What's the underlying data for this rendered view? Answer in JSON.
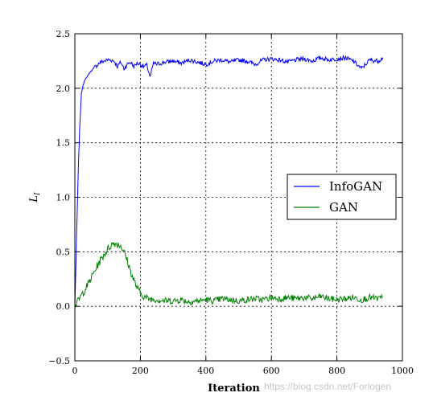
{
  "chart_data": {
    "type": "line",
    "title": "",
    "xlabel": "Iteration",
    "ylabel": "L_I",
    "ylabel_main": "L",
    "ylabel_sub": "I",
    "xlim": [
      0,
      1000
    ],
    "ylim": [
      -0.5,
      2.5
    ],
    "xticks": [
      0,
      200,
      400,
      600,
      800,
      1000
    ],
    "yticks": [
      -0.5,
      0.0,
      0.5,
      1.0,
      1.5,
      2.0,
      2.5
    ],
    "xtick_labels": [
      "0",
      "200",
      "400",
      "600",
      "800",
      "1000"
    ],
    "ytick_labels": [
      "−0.5",
      "0.0",
      "0.5",
      "1.0",
      "1.5",
      "2.0",
      "2.5"
    ],
    "grid": true,
    "grid_style": "dotted",
    "legend_position": "center-right",
    "series": [
      {
        "name": "InfoGAN",
        "color": "#0000ff",
        "x": [
          0,
          5,
          10,
          15,
          20,
          25,
          30,
          40,
          50,
          60,
          70,
          80,
          90,
          100,
          110,
          120,
          130,
          140,
          150,
          160,
          170,
          180,
          190,
          200,
          210,
          220,
          230,
          240,
          250,
          275,
          300,
          325,
          350,
          375,
          400,
          425,
          450,
          475,
          500,
          525,
          550,
          575,
          600,
          625,
          650,
          675,
          700,
          725,
          750,
          775,
          800,
          825,
          850,
          875,
          900,
          925,
          940
        ],
        "y": [
          0.0,
          0.6,
          1.2,
          1.65,
          1.95,
          2.03,
          2.07,
          2.12,
          2.16,
          2.19,
          2.22,
          2.24,
          2.25,
          2.26,
          2.26,
          2.25,
          2.2,
          2.24,
          2.18,
          2.22,
          2.24,
          2.2,
          2.23,
          2.22,
          2.2,
          2.21,
          2.1,
          2.23,
          2.22,
          2.24,
          2.25,
          2.23,
          2.26,
          2.24,
          2.22,
          2.25,
          2.26,
          2.24,
          2.26,
          2.25,
          2.22,
          2.26,
          2.27,
          2.26,
          2.24,
          2.26,
          2.27,
          2.25,
          2.28,
          2.26,
          2.27,
          2.28,
          2.25,
          2.18,
          2.26,
          2.25,
          2.28
        ]
      },
      {
        "name": "GAN",
        "color": "#007f00",
        "x": [
          0,
          10,
          20,
          30,
          40,
          50,
          60,
          70,
          80,
          90,
          100,
          110,
          120,
          130,
          140,
          150,
          160,
          170,
          180,
          190,
          200,
          210,
          225,
          250,
          275,
          300,
          325,
          350,
          375,
          400,
          425,
          450,
          475,
          500,
          525,
          550,
          575,
          600,
          625,
          650,
          675,
          700,
          725,
          750,
          775,
          800,
          825,
          850,
          875,
          900,
          925,
          940
        ],
        "y": [
          0.0,
          0.05,
          0.1,
          0.15,
          0.2,
          0.26,
          0.32,
          0.38,
          0.43,
          0.48,
          0.52,
          0.56,
          0.58,
          0.57,
          0.56,
          0.5,
          0.42,
          0.32,
          0.24,
          0.17,
          0.12,
          0.09,
          0.07,
          0.06,
          0.05,
          0.05,
          0.06,
          0.04,
          0.05,
          0.06,
          0.05,
          0.07,
          0.06,
          0.05,
          0.06,
          0.07,
          0.06,
          0.08,
          0.07,
          0.08,
          0.07,
          0.08,
          0.07,
          0.09,
          0.07,
          0.06,
          0.07,
          0.08,
          0.06,
          0.08,
          0.07,
          0.08
        ]
      }
    ]
  },
  "watermark": "https://blog.csdn.net/Forlogen"
}
